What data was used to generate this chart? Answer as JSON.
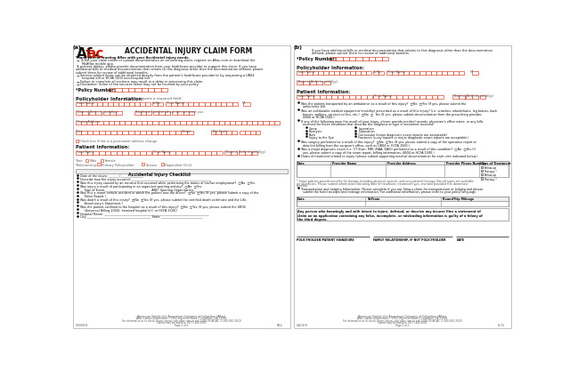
{
  "background": "#ffffff",
  "form_color": "#cc2200",
  "text_color": "#111111",
  "gray_text": "#555555",
  "light_gray": "#dddddd",
  "panel_border": "#aaaaaa",
  "table_border": "#888888",
  "header_bg": "#eeeeee"
}
